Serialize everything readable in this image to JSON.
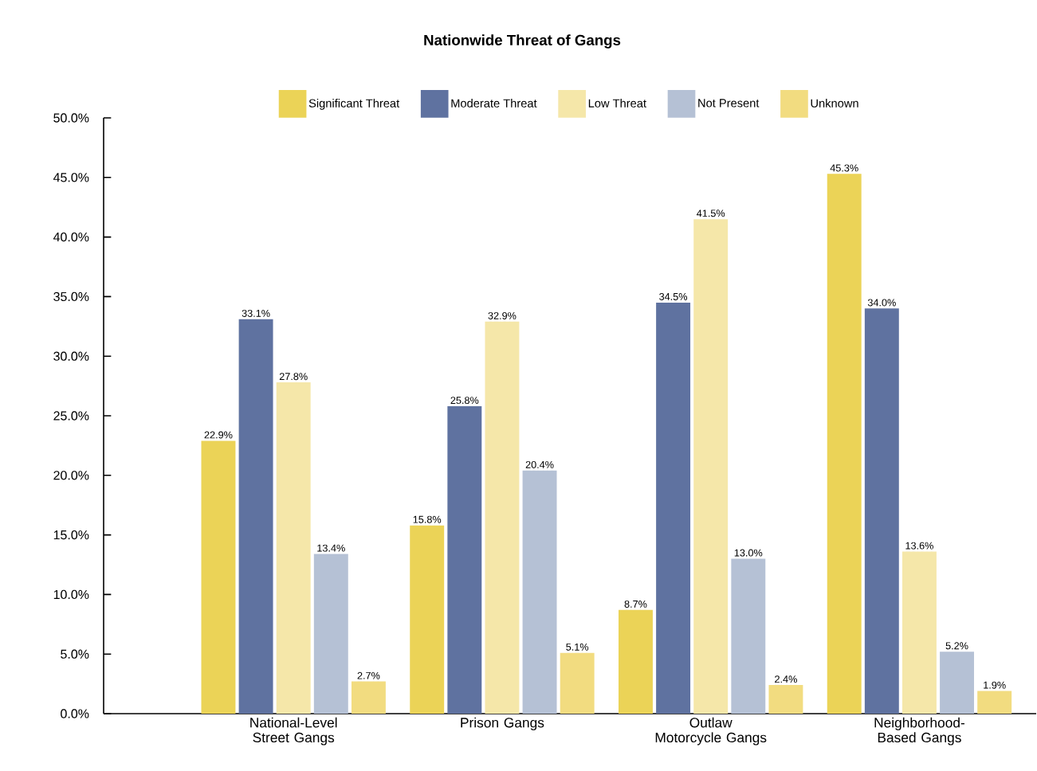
{
  "chart_data": {
    "type": "bar",
    "title": "Nationwide Threat of Gangs",
    "categories": [
      "National-Level Street Gangs",
      "Prison Gangs",
      "Outlaw Motorcycle Gangs",
      "Neighborhood-Based Gangs"
    ],
    "series": [
      {
        "name": "Significant Threat",
        "color": "#ebd357",
        "values": [
          22.9,
          15.8,
          8.7,
          45.3
        ],
        "value_labels": [
          "22.9%",
          "15.8%",
          "8.7%",
          "45.3%"
        ]
      },
      {
        "name": "Moderate Threat",
        "color": "#5f72a0",
        "values": [
          33.1,
          25.8,
          34.5,
          34.0
        ],
        "value_labels": [
          "33.1%",
          "25.8%",
          "34.5%",
          "34.0%"
        ]
      },
      {
        "name": "Low Threat",
        "color": "#f5e7a9",
        "values": [
          27.8,
          32.9,
          41.5,
          13.6
        ],
        "value_labels": [
          "27.8%",
          "32.9%",
          "41.5%",
          "13.6%"
        ]
      },
      {
        "name": "Not Present",
        "color": "#b5c1d5",
        "values": [
          13.4,
          20.4,
          13.0,
          5.2
        ],
        "value_labels": [
          "13.4%",
          "20.4%",
          "13.0%",
          "5.2%"
        ]
      },
      {
        "name": "Unknown",
        "color": "#f2dc80",
        "values": [
          2.7,
          5.1,
          2.4,
          1.9
        ],
        "value_labels": [
          "2.7%",
          "5.1%",
          "2.4%",
          "1.9%"
        ]
      }
    ],
    "ylim": [
      0,
      50
    ],
    "yticks": [
      {
        "value": 0,
        "label": "0.0%"
      },
      {
        "value": 5,
        "label": "5.0%"
      },
      {
        "value": 10,
        "label": "10.0%"
      },
      {
        "value": 15,
        "label": "15.0%"
      },
      {
        "value": 20,
        "label": "20.0%"
      },
      {
        "value": 25,
        "label": "25.0%"
      },
      {
        "value": 30,
        "label": "30.0%"
      },
      {
        "value": 35,
        "label": "35.0%"
      },
      {
        "value": 40,
        "label": "40.0%"
      },
      {
        "value": 45,
        "label": "45.0%"
      },
      {
        "value": 50,
        "label": "50.0%"
      }
    ],
    "legend": "top",
    "grid": false
  }
}
